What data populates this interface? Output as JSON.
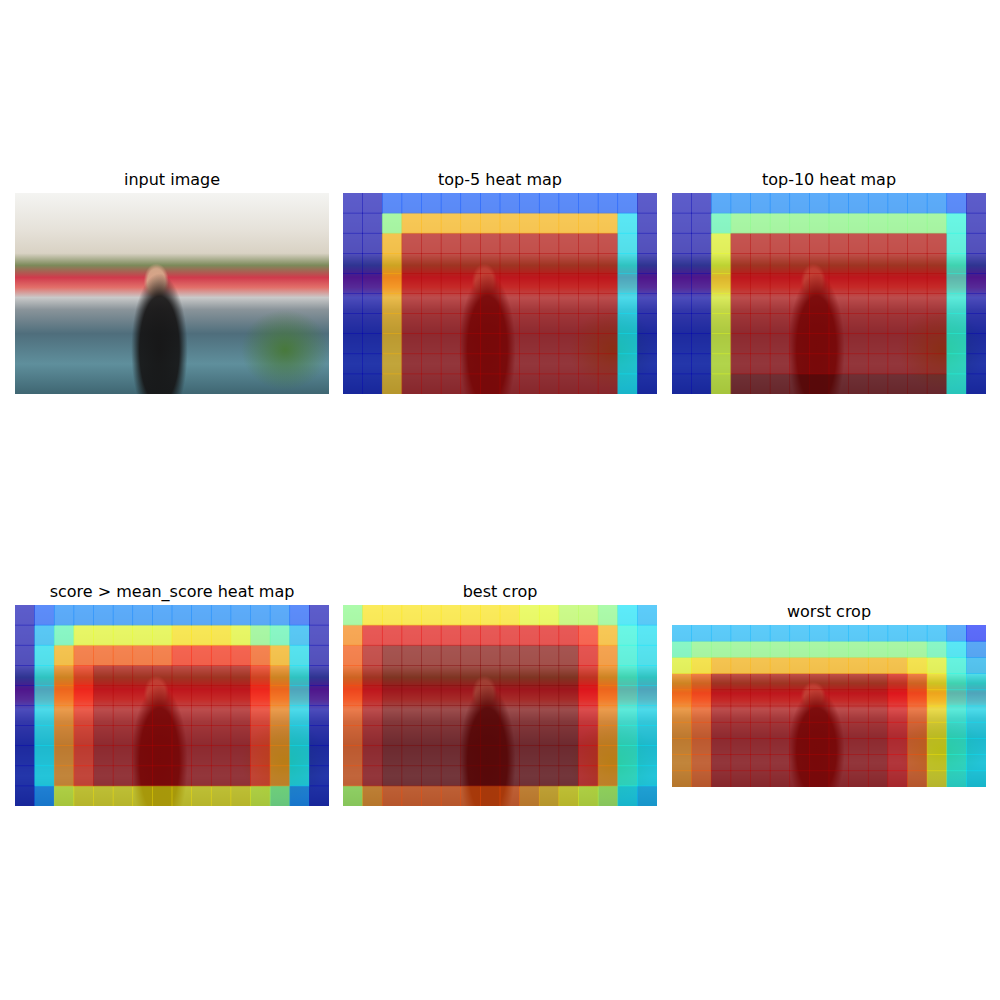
{
  "chart_data": [
    {
      "type": "image",
      "title": "input image"
    },
    {
      "type": "heatmap",
      "title": "top-5 heat map",
      "tick_labels": false,
      "color_range": [
        0,
        1
      ],
      "cells": [
        [
          0.05,
          0.05,
          0.2,
          0.2,
          0.2,
          0.2,
          0.2,
          0.2,
          0.2,
          0.2,
          0.2,
          0.2,
          0.2,
          0.2,
          0.2,
          0.05
        ],
        [
          0.05,
          0.05,
          0.5,
          0.7,
          0.7,
          0.7,
          0.7,
          0.7,
          0.7,
          0.7,
          0.7,
          0.7,
          0.7,
          0.7,
          0.35,
          0.05
        ],
        [
          0.05,
          0.05,
          0.7,
          0.95,
          0.95,
          0.95,
          0.95,
          0.95,
          0.95,
          0.95,
          0.95,
          0.95,
          0.95,
          0.95,
          0.35,
          0.05
        ],
        [
          0.05,
          0.05,
          0.7,
          0.95,
          0.95,
          0.95,
          0.95,
          0.95,
          0.95,
          0.95,
          0.95,
          0.95,
          0.95,
          0.95,
          0.35,
          0.05
        ],
        [
          0.05,
          0.05,
          0.7,
          0.95,
          0.95,
          0.95,
          0.95,
          0.95,
          0.95,
          0.95,
          0.95,
          0.95,
          0.95,
          0.95,
          0.35,
          0.05
        ],
        [
          0.05,
          0.05,
          0.7,
          0.95,
          0.95,
          0.95,
          0.95,
          0.95,
          0.95,
          0.95,
          0.95,
          0.95,
          0.95,
          0.95,
          0.35,
          0.05
        ],
        [
          0.05,
          0.05,
          0.7,
          0.95,
          0.95,
          0.95,
          0.95,
          0.95,
          0.95,
          0.95,
          0.95,
          0.95,
          0.95,
          0.95,
          0.35,
          0.05
        ],
        [
          0.05,
          0.05,
          0.7,
          0.95,
          0.95,
          0.95,
          0.95,
          0.95,
          0.95,
          0.95,
          0.95,
          0.95,
          0.95,
          0.95,
          0.35,
          0.05
        ],
        [
          0.05,
          0.05,
          0.7,
          0.95,
          0.95,
          0.95,
          0.95,
          0.95,
          0.95,
          0.95,
          0.95,
          0.95,
          0.95,
          0.95,
          0.35,
          0.05
        ],
        [
          0.05,
          0.05,
          0.7,
          0.95,
          0.95,
          0.95,
          0.95,
          0.95,
          0.95,
          0.95,
          0.95,
          0.95,
          0.95,
          0.95,
          0.35,
          0.05
        ]
      ]
    },
    {
      "type": "heatmap",
      "title": "top-10 heat map",
      "tick_labels": false,
      "color_range": [
        0,
        1
      ],
      "cells": [
        [
          0.05,
          0.05,
          0.25,
          0.25,
          0.25,
          0.25,
          0.25,
          0.25,
          0.25,
          0.25,
          0.25,
          0.25,
          0.25,
          0.25,
          0.2,
          0.05
        ],
        [
          0.05,
          0.05,
          0.45,
          0.5,
          0.5,
          0.5,
          0.5,
          0.5,
          0.5,
          0.5,
          0.5,
          0.5,
          0.5,
          0.5,
          0.4,
          0.05
        ],
        [
          0.05,
          0.05,
          0.6,
          0.95,
          0.95,
          0.95,
          0.95,
          0.95,
          0.95,
          0.95,
          0.95,
          0.95,
          0.95,
          0.95,
          0.4,
          0.05
        ],
        [
          0.05,
          0.05,
          0.6,
          0.95,
          0.95,
          0.95,
          0.95,
          0.95,
          0.95,
          0.95,
          0.95,
          0.95,
          0.95,
          0.95,
          0.4,
          0.05
        ],
        [
          0.05,
          0.05,
          0.6,
          0.95,
          0.95,
          0.95,
          0.95,
          0.95,
          0.95,
          0.95,
          0.95,
          0.95,
          0.95,
          0.95,
          0.4,
          0.05
        ],
        [
          0.05,
          0.05,
          0.6,
          0.95,
          0.95,
          0.95,
          0.95,
          0.95,
          0.95,
          0.95,
          0.95,
          0.95,
          0.95,
          0.95,
          0.4,
          0.05
        ],
        [
          0.05,
          0.05,
          0.6,
          0.95,
          0.95,
          0.95,
          0.95,
          0.95,
          0.95,
          0.95,
          0.95,
          0.95,
          0.95,
          0.95,
          0.4,
          0.05
        ],
        [
          0.05,
          0.05,
          0.6,
          0.95,
          0.95,
          0.95,
          0.95,
          0.95,
          0.95,
          0.95,
          0.95,
          0.95,
          0.95,
          0.95,
          0.4,
          0.05
        ],
        [
          0.05,
          0.05,
          0.6,
          0.95,
          0.95,
          0.95,
          0.95,
          0.95,
          0.95,
          0.95,
          0.95,
          0.95,
          0.95,
          0.95,
          0.4,
          0.05
        ],
        [
          0.05,
          0.05,
          0.6,
          1.0,
          1.0,
          1.0,
          1.0,
          1.0,
          1.0,
          1.0,
          1.0,
          1.0,
          1.0,
          1.0,
          0.4,
          0.05
        ]
      ]
    },
    {
      "type": "heatmap",
      "title": "score > mean_score heat map",
      "tick_labels": false,
      "color_range": [
        0,
        1
      ],
      "cells": [
        [
          0.05,
          0.2,
          0.25,
          0.25,
          0.25,
          0.25,
          0.25,
          0.25,
          0.25,
          0.25,
          0.25,
          0.25,
          0.25,
          0.25,
          0.2,
          0.05
        ],
        [
          0.05,
          0.3,
          0.45,
          0.6,
          0.6,
          0.6,
          0.6,
          0.6,
          0.65,
          0.65,
          0.65,
          0.6,
          0.5,
          0.45,
          0.3,
          0.05
        ],
        [
          0.05,
          0.35,
          0.7,
          0.8,
          0.8,
          0.8,
          0.8,
          0.8,
          0.85,
          0.85,
          0.85,
          0.85,
          0.8,
          0.7,
          0.35,
          0.05
        ],
        [
          0.05,
          0.35,
          0.75,
          0.85,
          0.95,
          0.95,
          0.95,
          0.95,
          0.95,
          0.95,
          0.95,
          0.95,
          0.85,
          0.75,
          0.35,
          0.05
        ],
        [
          0.05,
          0.35,
          0.75,
          0.85,
          0.95,
          0.95,
          0.95,
          0.95,
          0.95,
          0.95,
          0.95,
          0.95,
          0.85,
          0.75,
          0.35,
          0.05
        ],
        [
          0.05,
          0.35,
          0.75,
          0.85,
          0.95,
          0.95,
          0.95,
          0.95,
          0.95,
          0.95,
          0.95,
          0.95,
          0.85,
          0.75,
          0.35,
          0.05
        ],
        [
          0.05,
          0.35,
          0.75,
          0.85,
          0.95,
          0.95,
          0.95,
          0.95,
          0.95,
          0.95,
          0.95,
          0.95,
          0.85,
          0.75,
          0.35,
          0.05
        ],
        [
          0.05,
          0.35,
          0.75,
          0.85,
          0.95,
          0.95,
          0.95,
          0.95,
          0.95,
          0.95,
          0.95,
          0.95,
          0.85,
          0.75,
          0.35,
          0.05
        ],
        [
          0.05,
          0.35,
          0.75,
          0.85,
          0.95,
          0.95,
          0.95,
          0.95,
          0.95,
          0.95,
          0.95,
          0.95,
          0.85,
          0.75,
          0.35,
          0.05
        ],
        [
          0.05,
          0.25,
          0.6,
          0.65,
          0.65,
          0.65,
          0.65,
          0.65,
          0.65,
          0.65,
          0.65,
          0.65,
          0.6,
          0.5,
          0.25,
          0.05
        ]
      ]
    },
    {
      "type": "heatmap",
      "title": "best crop",
      "tick_labels": false,
      "color_range": [
        0,
        1
      ],
      "cells": [
        [
          0.5,
          0.65,
          0.65,
          0.65,
          0.65,
          0.65,
          0.65,
          0.65,
          0.65,
          0.6,
          0.6,
          0.55,
          0.55,
          0.5,
          0.35,
          0.3
        ],
        [
          0.75,
          0.9,
          0.9,
          0.9,
          0.9,
          0.9,
          0.9,
          0.9,
          0.9,
          0.9,
          0.9,
          0.9,
          0.85,
          0.7,
          0.4,
          0.35
        ],
        [
          0.8,
          0.95,
          1.0,
          1.0,
          1.0,
          1.0,
          1.0,
          1.0,
          1.0,
          1.0,
          1.0,
          1.0,
          0.9,
          0.75,
          0.4,
          0.35
        ],
        [
          0.8,
          0.95,
          1.0,
          1.0,
          1.0,
          1.0,
          1.0,
          1.0,
          1.0,
          1.0,
          1.0,
          1.0,
          0.9,
          0.75,
          0.4,
          0.35
        ],
        [
          0.8,
          0.95,
          1.0,
          1.0,
          1.0,
          1.0,
          1.0,
          1.0,
          1.0,
          1.0,
          1.0,
          1.0,
          0.9,
          0.75,
          0.4,
          0.35
        ],
        [
          0.8,
          0.95,
          1.0,
          1.0,
          1.0,
          1.0,
          1.0,
          1.0,
          1.0,
          1.0,
          1.0,
          1.0,
          0.9,
          0.75,
          0.4,
          0.35
        ],
        [
          0.8,
          0.95,
          1.0,
          1.0,
          1.0,
          1.0,
          1.0,
          1.0,
          1.0,
          1.0,
          1.0,
          1.0,
          0.9,
          0.75,
          0.4,
          0.35
        ],
        [
          0.8,
          0.95,
          1.0,
          1.0,
          1.0,
          1.0,
          1.0,
          1.0,
          1.0,
          1.0,
          1.0,
          1.0,
          0.9,
          0.75,
          0.4,
          0.35
        ],
        [
          0.8,
          0.95,
          1.0,
          1.0,
          1.0,
          1.0,
          1.0,
          1.0,
          1.0,
          1.0,
          1.0,
          1.0,
          0.9,
          0.75,
          0.4,
          0.35
        ],
        [
          0.55,
          0.75,
          0.8,
          0.8,
          0.8,
          0.8,
          0.8,
          0.8,
          0.8,
          0.75,
          0.7,
          0.65,
          0.6,
          0.55,
          0.35,
          0.3
        ]
      ]
    },
    {
      "type": "heatmap",
      "title": "worst crop",
      "tick_labels": false,
      "color_range": [
        0,
        1
      ],
      "cells": [
        [
          0.3,
          0.3,
          0.3,
          0.3,
          0.3,
          0.3,
          0.3,
          0.3,
          0.3,
          0.3,
          0.3,
          0.3,
          0.3,
          0.3,
          0.25,
          0.15
        ],
        [
          0.45,
          0.5,
          0.5,
          0.5,
          0.5,
          0.5,
          0.5,
          0.5,
          0.5,
          0.5,
          0.5,
          0.5,
          0.5,
          0.45,
          0.35,
          0.25
        ],
        [
          0.6,
          0.65,
          0.7,
          0.7,
          0.7,
          0.7,
          0.7,
          0.7,
          0.7,
          0.7,
          0.7,
          0.7,
          0.65,
          0.6,
          0.4,
          0.3
        ],
        [
          0.75,
          0.8,
          0.95,
          0.95,
          0.95,
          0.95,
          0.95,
          0.95,
          0.95,
          0.95,
          0.95,
          0.9,
          0.8,
          0.65,
          0.4,
          0.35
        ],
        [
          0.75,
          0.8,
          0.95,
          0.95,
          0.95,
          0.95,
          0.95,
          0.95,
          0.95,
          0.95,
          0.95,
          0.9,
          0.8,
          0.65,
          0.4,
          0.35
        ],
        [
          0.75,
          0.8,
          0.95,
          0.95,
          0.95,
          0.95,
          0.95,
          0.95,
          0.95,
          0.95,
          0.95,
          0.9,
          0.8,
          0.65,
          0.4,
          0.35
        ],
        [
          0.75,
          0.8,
          0.95,
          0.95,
          0.95,
          0.95,
          0.95,
          0.95,
          0.95,
          0.95,
          0.95,
          0.9,
          0.8,
          0.65,
          0.4,
          0.35
        ],
        [
          0.75,
          0.8,
          0.95,
          0.95,
          0.95,
          0.95,
          0.95,
          0.95,
          0.95,
          0.95,
          0.95,
          0.9,
          0.8,
          0.65,
          0.4,
          0.35
        ],
        [
          0.75,
          0.8,
          0.95,
          0.95,
          0.95,
          0.95,
          0.95,
          0.95,
          0.95,
          0.95,
          0.95,
          0.9,
          0.8,
          0.65,
          0.4,
          0.35
        ],
        [
          0.75,
          0.8,
          0.95,
          0.95,
          0.95,
          0.95,
          0.95,
          0.95,
          0.95,
          0.95,
          0.95,
          0.9,
          0.8,
          0.65,
          0.4,
          0.35
        ]
      ]
    }
  ]
}
